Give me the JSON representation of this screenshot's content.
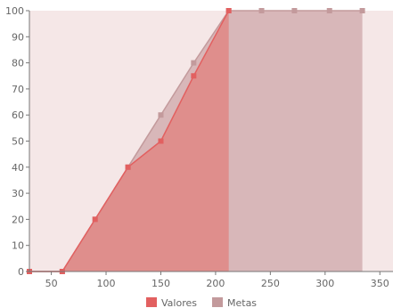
{
  "chart_data": {
    "type": "area",
    "x_ticks": [
      50,
      100,
      150,
      200,
      250,
      300,
      350
    ],
    "y_ticks": [
      0,
      10,
      20,
      30,
      40,
      50,
      60,
      70,
      80,
      90,
      100
    ],
    "xlim": [
      30,
      362
    ],
    "ylim": [
      0,
      100
    ],
    "grid": false,
    "legend_position": "bottom",
    "series": [
      {
        "name": "Valores",
        "color": "#e26060",
        "points": [
          [
            30,
            0
          ],
          [
            60,
            0
          ],
          [
            90,
            20
          ],
          [
            120,
            40
          ],
          [
            150,
            50
          ],
          [
            180,
            75
          ],
          [
            212,
            100
          ]
        ]
      },
      {
        "name": "Metas",
        "color": "#c39a9c",
        "points": [
          [
            30,
            0
          ],
          [
            60,
            0
          ],
          [
            90,
            20
          ],
          [
            120,
            40
          ],
          [
            150,
            60
          ],
          [
            180,
            80
          ],
          [
            212,
            100
          ],
          [
            242,
            100
          ],
          [
            272,
            100
          ],
          [
            304,
            100
          ],
          [
            334,
            100
          ]
        ]
      }
    ],
    "colors": {
      "plot_background": "#f5e7e7",
      "valores_fill": "#e08a88",
      "metas_fill": "#d8b7b9",
      "axis": "#777777"
    }
  }
}
